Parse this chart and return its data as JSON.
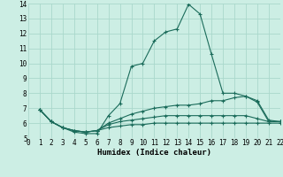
{
  "xlabel": "Humidex (Indice chaleur)",
  "xlim": [
    0,
    22
  ],
  "ylim": [
    5,
    14
  ],
  "yticks": [
    5,
    6,
    7,
    8,
    9,
    10,
    11,
    12,
    13,
    14
  ],
  "xticks": [
    0,
    1,
    2,
    3,
    4,
    5,
    6,
    7,
    8,
    9,
    10,
    11,
    12,
    13,
    14,
    15,
    16,
    17,
    18,
    19,
    20,
    21,
    22
  ],
  "bg_color": "#cceee4",
  "grid_color": "#aad8cc",
  "line_color": "#1a6b5a",
  "series": [
    [
      6.9,
      6.1,
      5.7,
      5.4,
      5.3,
      5.3,
      6.5,
      7.3,
      9.8,
      10.0,
      11.5,
      12.1,
      12.3,
      13.95,
      13.3,
      10.6,
      8.0,
      8.0,
      7.8,
      7.4,
      6.1,
      6.1
    ],
    [
      6.9,
      6.1,
      5.7,
      5.5,
      5.4,
      5.5,
      6.0,
      6.3,
      6.6,
      6.8,
      7.0,
      7.1,
      7.2,
      7.2,
      7.3,
      7.5,
      7.5,
      7.7,
      7.8,
      7.5,
      6.2,
      6.1
    ],
    [
      6.9,
      6.1,
      5.7,
      5.5,
      5.4,
      5.5,
      5.9,
      6.1,
      6.2,
      6.3,
      6.4,
      6.5,
      6.5,
      6.5,
      6.5,
      6.5,
      6.5,
      6.5,
      6.5,
      6.3,
      6.1,
      6.1
    ],
    [
      6.9,
      6.1,
      5.7,
      5.5,
      5.4,
      5.5,
      5.7,
      5.8,
      5.9,
      5.9,
      6.0,
      6.0,
      6.0,
      6.0,
      6.0,
      6.0,
      6.0,
      6.0,
      6.0,
      6.0,
      6.0,
      6.0
    ]
  ],
  "tick_fontsize": 5.5,
  "xlabel_fontsize": 6.5
}
